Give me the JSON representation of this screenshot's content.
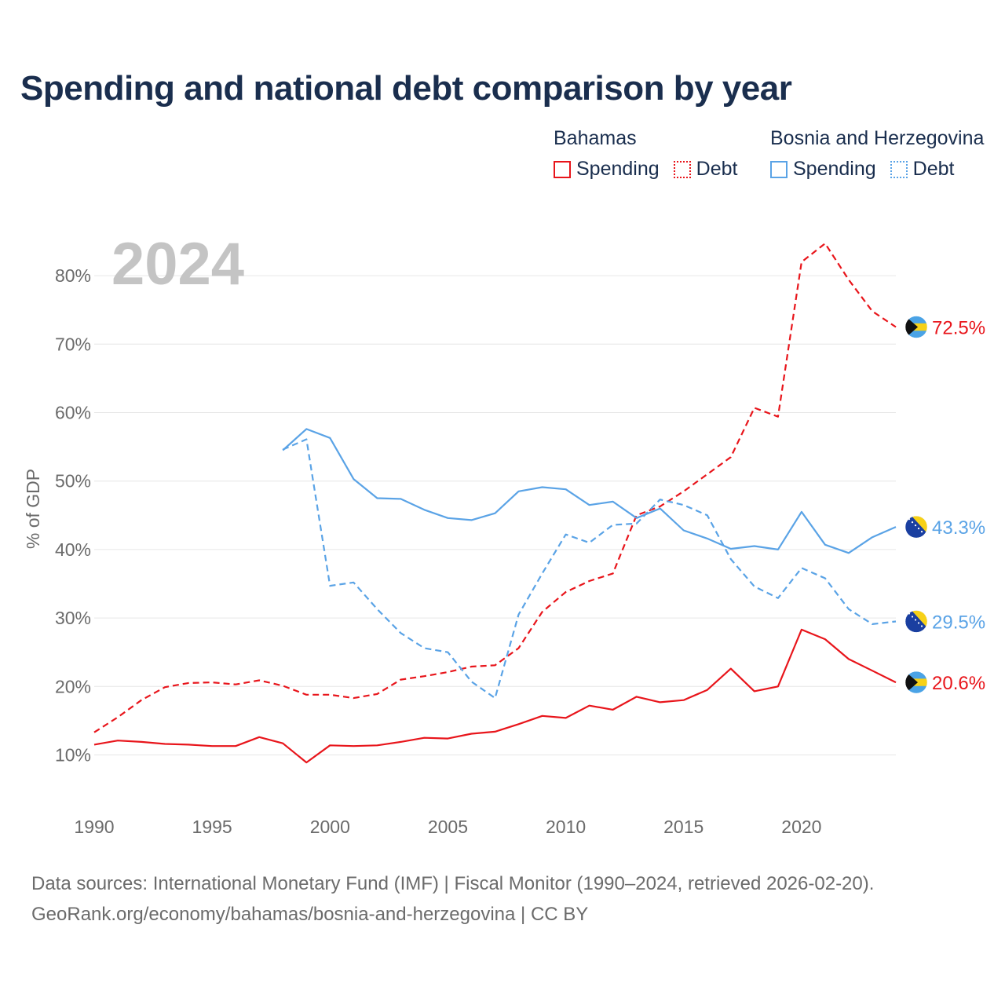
{
  "title": "Spending and national debt comparison by year",
  "legend": {
    "groups": [
      {
        "name": "Bahamas",
        "color": "#e8151b",
        "items": [
          "Spending",
          "Debt"
        ]
      },
      {
        "name": "Bosnia and Herzegovina",
        "color": "#5aa3e6",
        "items": [
          "Spending",
          "Debt"
        ]
      }
    ]
  },
  "footer": {
    "line1": "Data sources: International Monetary Fund (IMF) | Fiscal Monitor (1990–2024, retrieved 2026-02-20).",
    "line2": "GeoRank.org/economy/bahamas/bosnia-and-herzegovina | CC BY"
  },
  "chart_data": {
    "type": "line",
    "year_label": "2024",
    "ylabel": "% of GDP",
    "ylim": [
      5,
      85
    ],
    "xlim": [
      1990,
      2024
    ],
    "yticks": [
      10,
      20,
      30,
      40,
      50,
      60,
      70,
      80
    ],
    "ytick_labels": [
      "10%",
      "20%",
      "30%",
      "40%",
      "50%",
      "60%",
      "70%",
      "80%"
    ],
    "xticks": [
      1990,
      1995,
      2000,
      2005,
      2010,
      2015,
      2020
    ],
    "xtick_labels": [
      "1990",
      "1995",
      "2000",
      "2005",
      "2010",
      "2015",
      "2020"
    ],
    "series": [
      {
        "name": "Bahamas Debt",
        "country": "Bahamas",
        "metric": "Debt",
        "color": "#e8151b",
        "dash": "dashed",
        "end_label": "72.5%",
        "flag": "bahamas",
        "x": [
          1990,
          1991,
          1992,
          1993,
          1994,
          1995,
          1996,
          1997,
          1998,
          1999,
          2000,
          2001,
          2002,
          2003,
          2004,
          2005,
          2006,
          2007,
          2008,
          2009,
          2010,
          2011,
          2012,
          2013,
          2014,
          2015,
          2016,
          2017,
          2018,
          2019,
          2020,
          2021,
          2022,
          2023,
          2024
        ],
        "y": [
          13.3,
          15.5,
          18.0,
          19.9,
          20.5,
          20.6,
          20.3,
          20.9,
          20.1,
          18.8,
          18.8,
          18.3,
          18.9,
          21.0,
          21.5,
          22.1,
          22.9,
          23.1,
          25.6,
          30.9,
          33.8,
          35.4,
          36.5,
          45.0,
          46.3,
          48.5,
          51.0,
          53.5,
          60.7,
          59.4,
          82.0,
          84.7,
          79.4,
          74.8,
          72.5
        ]
      },
      {
        "name": "Bosnia and Herzegovina Spending",
        "country": "Bosnia and Herzegovina",
        "metric": "Spending",
        "color": "#5aa3e6",
        "dash": "solid",
        "end_label": "43.3%",
        "flag": "bosnia",
        "x": [
          1998,
          1999,
          2000,
          2001,
          2002,
          2003,
          2004,
          2005,
          2006,
          2007,
          2008,
          2009,
          2010,
          2011,
          2012,
          2013,
          2014,
          2015,
          2016,
          2017,
          2018,
          2019,
          2020,
          2021,
          2022,
          2023,
          2024
        ],
        "y": [
          54.5,
          57.6,
          56.3,
          50.3,
          47.5,
          47.4,
          45.8,
          44.6,
          44.3,
          45.3,
          48.5,
          49.1,
          48.8,
          46.5,
          47.0,
          44.6,
          46.0,
          42.8,
          41.6,
          40.1,
          40.5,
          40.0,
          45.5,
          40.7,
          39.5,
          41.8,
          43.3
        ]
      },
      {
        "name": "Bosnia and Herzegovina Debt",
        "country": "Bosnia and Herzegovina",
        "metric": "Debt",
        "color": "#5aa3e6",
        "dash": "dashed",
        "end_label": "29.5%",
        "flag": "bosnia",
        "x": [
          1998,
          1999,
          2000,
          2001,
          2002,
          2003,
          2004,
          2005,
          2006,
          2007,
          2008,
          2009,
          2010,
          2011,
          2012,
          2013,
          2014,
          2015,
          2016,
          2017,
          2018,
          2019,
          2020,
          2021,
          2022,
          2023,
          2024
        ],
        "y": [
          54.6,
          56.1,
          34.7,
          35.2,
          31.3,
          27.8,
          25.6,
          25.0,
          20.7,
          18.3,
          30.5,
          36.5,
          42.2,
          41.0,
          43.6,
          43.8,
          47.3,
          46.5,
          45.0,
          38.6,
          34.6,
          32.9,
          37.3,
          35.8,
          31.3,
          29.1,
          29.5
        ]
      },
      {
        "name": "Bahamas Spending",
        "country": "Bahamas",
        "metric": "Spending",
        "color": "#e8151b",
        "dash": "solid",
        "end_label": "20.6%",
        "flag": "bahamas",
        "x": [
          1990,
          1991,
          1992,
          1993,
          1994,
          1995,
          1996,
          1997,
          1998,
          1999,
          2000,
          2001,
          2002,
          2003,
          2004,
          2005,
          2006,
          2007,
          2008,
          2009,
          2010,
          2011,
          2012,
          2013,
          2014,
          2015,
          2016,
          2017,
          2018,
          2019,
          2020,
          2021,
          2022,
          2023,
          2024
        ],
        "y": [
          11.5,
          12.1,
          11.9,
          11.6,
          11.5,
          11.3,
          11.3,
          12.6,
          11.7,
          8.9,
          11.4,
          11.3,
          11.4,
          11.9,
          12.5,
          12.4,
          13.1,
          13.4,
          14.5,
          15.7,
          15.4,
          17.2,
          16.6,
          18.5,
          17.7,
          18.0,
          19.5,
          22.6,
          19.3,
          20.0,
          28.3,
          26.9,
          24.0,
          22.3,
          20.6
        ]
      }
    ]
  }
}
